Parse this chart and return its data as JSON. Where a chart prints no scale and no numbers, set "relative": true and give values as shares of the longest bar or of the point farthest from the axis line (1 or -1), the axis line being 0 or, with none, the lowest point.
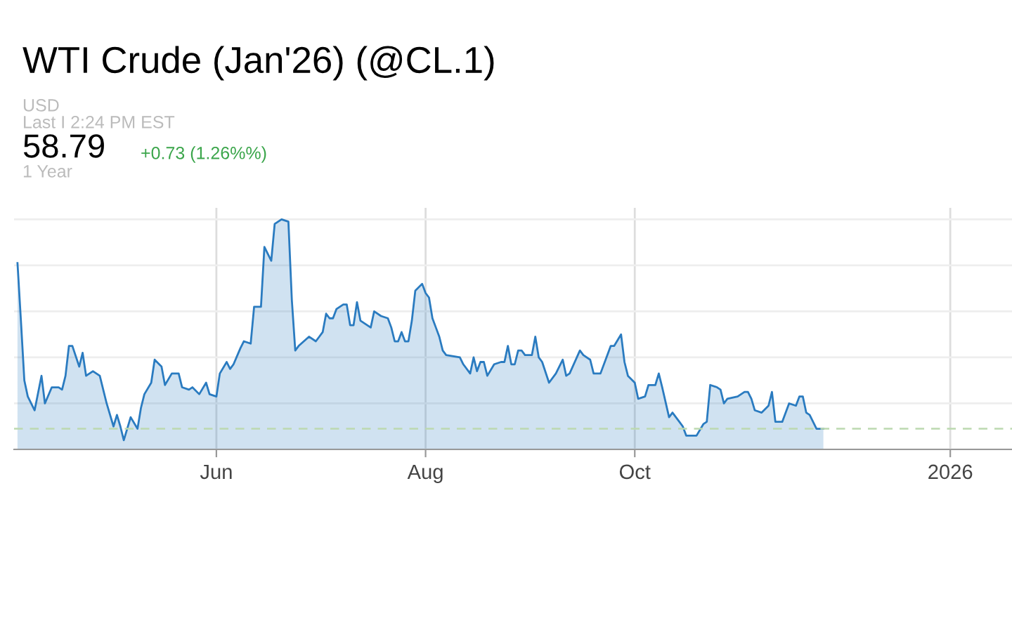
{
  "chart_data": {
    "type": "area",
    "title": "WTI Crude (Jan'26) (@CL.1)",
    "annotations": [
      "USD",
      "Last I 2:24 PM EST",
      "58.79",
      "+0.73 (1.26%%)",
      "1 Year"
    ],
    "relative": true,
    "grid": true,
    "marker": "none",
    "line_style": "solid",
    "xlim": [
      "2025-04-03",
      "2026-01-19"
    ],
    "xticks": [
      {
        "value": "2025-06-01",
        "label": "Jun"
      },
      {
        "value": "2025-08-01",
        "label": "Aug"
      },
      {
        "value": "2025-10-01",
        "label": "Oct"
      },
      {
        "value": "2026-01-01",
        "label": "2026"
      }
    ],
    "ref_lines": [
      {
        "axis": "y",
        "value": 0.09,
        "label": null,
        "color": "#bcd9b0",
        "line_style": "dashed"
      }
    ],
    "series": [
      {
        "color": "#2a7bc0",
        "x": [
          "2025-04-04",
          "2025-04-05",
          "2025-04-06",
          "2025-04-07",
          "2025-04-09",
          "2025-04-11",
          "2025-04-12",
          "2025-04-14",
          "2025-04-16",
          "2025-04-17",
          "2025-04-18",
          "2025-04-19",
          "2025-04-20",
          "2025-04-22",
          "2025-04-23",
          "2025-04-24",
          "2025-04-26",
          "2025-04-28",
          "2025-04-29",
          "2025-04-30",
          "2025-05-02",
          "2025-05-03",
          "2025-05-04",
          "2025-05-05",
          "2025-05-07",
          "2025-05-09",
          "2025-05-10",
          "2025-05-11",
          "2025-05-13",
          "2025-05-14",
          "2025-05-16",
          "2025-05-17",
          "2025-05-19",
          "2025-05-21",
          "2025-05-22",
          "2025-05-24",
          "2025-05-25",
          "2025-05-27",
          "2025-05-29",
          "2025-05-30",
          "2025-06-01",
          "2025-06-02",
          "2025-06-04",
          "2025-06-05",
          "2025-06-06",
          "2025-06-08",
          "2025-06-09",
          "2025-06-11",
          "2025-06-12",
          "2025-06-14",
          "2025-06-15",
          "2025-06-17",
          "2025-06-18",
          "2025-06-20",
          "2025-06-22",
          "2025-06-23",
          "2025-06-24",
          "2025-06-25",
          "2025-06-28",
          "2025-06-30",
          "2025-07-01",
          "2025-07-02",
          "2025-07-03",
          "2025-07-04",
          "2025-07-05",
          "2025-07-06",
          "2025-07-08",
          "2025-07-09",
          "2025-07-10",
          "2025-07-11",
          "2025-07-12",
          "2025-07-13",
          "2025-07-15",
          "2025-07-16",
          "2025-07-17",
          "2025-07-19",
          "2025-07-21",
          "2025-07-22",
          "2025-07-23",
          "2025-07-24",
          "2025-07-25",
          "2025-07-26",
          "2025-07-27",
          "2025-07-28",
          "2025-07-29",
          "2025-07-31",
          "2025-08-01",
          "2025-08-02",
          "2025-08-03",
          "2025-08-04",
          "2025-08-05",
          "2025-08-06",
          "2025-08-07",
          "2025-08-11",
          "2025-08-12",
          "2025-08-14",
          "2025-08-15",
          "2025-08-16",
          "2025-08-17",
          "2025-08-18",
          "2025-08-19",
          "2025-08-21",
          "2025-08-23",
          "2025-08-24",
          "2025-08-25",
          "2025-08-26",
          "2025-08-27",
          "2025-08-28",
          "2025-08-29",
          "2025-08-30",
          "2025-09-01",
          "2025-09-02",
          "2025-09-03",
          "2025-09-04",
          "2025-09-06",
          "2025-09-08",
          "2025-09-10",
          "2025-09-11",
          "2025-09-12",
          "2025-09-15",
          "2025-09-16",
          "2025-09-18",
          "2025-09-19",
          "2025-09-21",
          "2025-09-24",
          "2025-09-25",
          "2025-09-27",
          "2025-09-28",
          "2025-09-29",
          "2025-10-01",
          "2025-10-02",
          "2025-10-04",
          "2025-10-05",
          "2025-10-07",
          "2025-10-08",
          "2025-10-09",
          "2025-10-11",
          "2025-10-12",
          "2025-10-14",
          "2025-10-15",
          "2025-10-16",
          "2025-10-19",
          "2025-10-21",
          "2025-10-22",
          "2025-10-23",
          "2025-10-25",
          "2025-10-26",
          "2025-10-27",
          "2025-10-28",
          "2025-10-31",
          "2025-11-02",
          "2025-11-03",
          "2025-11-04",
          "2025-11-05",
          "2025-11-07",
          "2025-11-09",
          "2025-11-10",
          "2025-11-11",
          "2025-11-13",
          "2025-11-15",
          "2025-11-17",
          "2025-11-18",
          "2025-11-19",
          "2025-11-20",
          "2025-11-21",
          "2025-11-23",
          "2025-11-25"
        ],
        "values": [
          0.81,
          0.56,
          0.3,
          0.23,
          0.17,
          0.32,
          0.2,
          0.27,
          0.27,
          0.26,
          0.32,
          0.45,
          0.45,
          0.36,
          0.42,
          0.32,
          0.34,
          0.32,
          0.26,
          0.2,
          0.1,
          0.15,
          0.1,
          0.04,
          0.14,
          0.09,
          0.18,
          0.24,
          0.29,
          0.39,
          0.36,
          0.28,
          0.33,
          0.33,
          0.27,
          0.26,
          0.27,
          0.24,
          0.29,
          0.24,
          0.23,
          0.33,
          0.38,
          0.35,
          0.37,
          0.44,
          0.47,
          0.46,
          0.62,
          0.62,
          0.88,
          0.82,
          0.98,
          1.0,
          0.99,
          0.65,
          0.43,
          0.45,
          0.49,
          0.47,
          0.49,
          0.51,
          0.59,
          0.57,
          0.57,
          0.61,
          0.63,
          0.63,
          0.54,
          0.54,
          0.64,
          0.56,
          0.54,
          0.53,
          0.6,
          0.58,
          0.57,
          0.53,
          0.47,
          0.47,
          0.51,
          0.47,
          0.47,
          0.56,
          0.69,
          0.72,
          0.68,
          0.66,
          0.57,
          0.53,
          0.49,
          0.43,
          0.41,
          0.4,
          0.37,
          0.33,
          0.4,
          0.34,
          0.38,
          0.38,
          0.32,
          0.37,
          0.38,
          0.38,
          0.45,
          0.37,
          0.37,
          0.43,
          0.43,
          0.41,
          0.41,
          0.49,
          0.4,
          0.38,
          0.29,
          0.33,
          0.39,
          0.32,
          0.33,
          0.43,
          0.41,
          0.39,
          0.33,
          0.33,
          0.45,
          0.45,
          0.5,
          0.38,
          0.32,
          0.29,
          0.22,
          0.23,
          0.28,
          0.28,
          0.33,
          0.27,
          0.14,
          0.16,
          0.12,
          0.1,
          0.06,
          0.06,
          0.11,
          0.12,
          0.28,
          0.27,
          0.26,
          0.2,
          0.22,
          0.23,
          0.25,
          0.25,
          0.22,
          0.17,
          0.16,
          0.19,
          0.25,
          0.12,
          0.12,
          0.2,
          0.19,
          0.23,
          0.23,
          0.16,
          0.15,
          0.09,
          0.09
        ]
      }
    ]
  }
}
